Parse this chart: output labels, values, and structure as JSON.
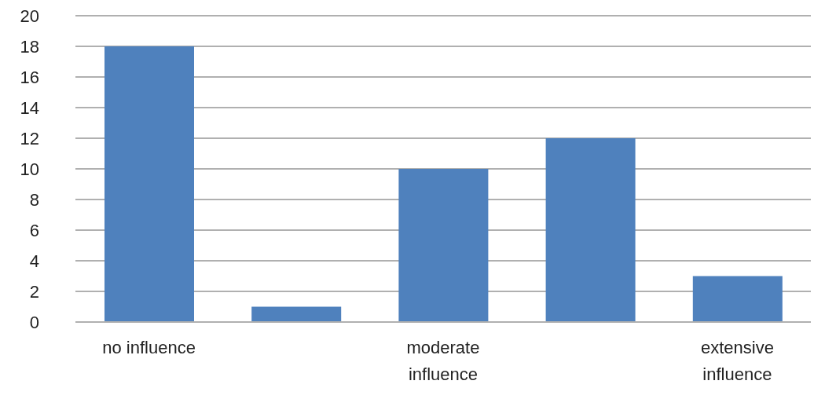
{
  "chart_data": {
    "type": "bar",
    "categories": [
      "no influence",
      null,
      "moderate influence",
      null,
      "extensive influence"
    ],
    "values": [
      18,
      1,
      10,
      12,
      3
    ],
    "color": "#4f81bd",
    "ylim": [
      0,
      20
    ],
    "yticks": [
      0,
      2,
      4,
      6,
      8,
      10,
      12,
      14,
      16,
      18,
      20
    ],
    "grid": "y"
  }
}
